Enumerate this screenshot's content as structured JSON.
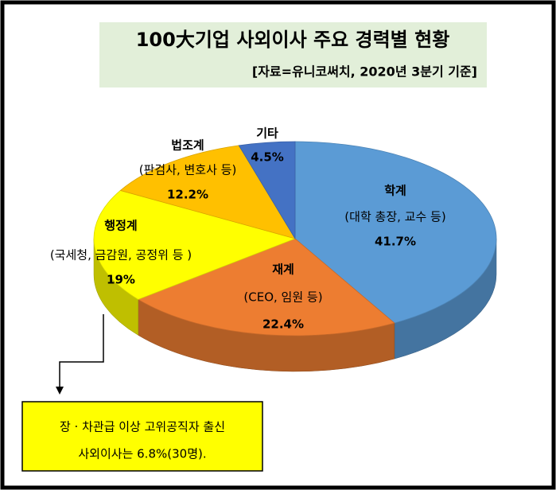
{
  "chart_data": {
    "type": "pie3d",
    "title": "100大기업 사외이사 주요 경력별 현황",
    "subtitle": "[자료=유니코써치, 2020년 3분기 기준]",
    "categories": [
      "학계",
      "재계",
      "행정계",
      "법조계",
      "기타"
    ],
    "details": [
      "(대학 총장, 교수 등)",
      "(CEO, 임원 등)",
      "(국세청, 금감원, 공정위 등 )",
      "(판검사, 변호사 등)",
      null
    ],
    "values": [
      41.7,
      22.4,
      19,
      12.2,
      4.5
    ],
    "value_labels": [
      "41.7%",
      "22.4%",
      "19%",
      "12.2%",
      "4.5%"
    ],
    "colors": [
      "#5b9bd5",
      "#ed7d31",
      "#ffff00",
      "#ffc000",
      "#4472c4"
    ],
    "annotation": [
      "장 · 차관급 이상 고위공직자 출신",
      "사외이사는 6.8%(30명)."
    ]
  }
}
